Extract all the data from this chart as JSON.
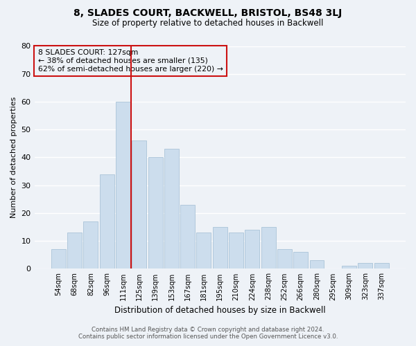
{
  "title": "8, SLADES COURT, BACKWELL, BRISTOL, BS48 3LJ",
  "subtitle": "Size of property relative to detached houses in Backwell",
  "xlabel": "Distribution of detached houses by size in Backwell",
  "ylabel": "Number of detached properties",
  "bar_color": "#ccdded",
  "bar_edgecolor": "#aac4d8",
  "background_color": "#eef2f7",
  "grid_color": "#ffffff",
  "annotation_box_edgecolor": "#cc1111",
  "vline_color": "#cc1111",
  "categories": [
    "54sqm",
    "68sqm",
    "82sqm",
    "96sqm",
    "111sqm",
    "125sqm",
    "139sqm",
    "153sqm",
    "167sqm",
    "181sqm",
    "195sqm",
    "210sqm",
    "224sqm",
    "238sqm",
    "252sqm",
    "266sqm",
    "280sqm",
    "295sqm",
    "309sqm",
    "323sqm",
    "337sqm"
  ],
  "values": [
    7,
    13,
    17,
    34,
    60,
    46,
    40,
    43,
    23,
    13,
    15,
    13,
    14,
    15,
    7,
    6,
    3,
    0,
    1,
    2,
    2
  ],
  "annotation_text": "8 SLADES COURT: 127sqm\n← 38% of detached houses are smaller (135)\n62% of semi-detached houses are larger (220) →",
  "ylim": [
    0,
    80
  ],
  "yticks": [
    0,
    10,
    20,
    30,
    40,
    50,
    60,
    70,
    80
  ],
  "footer1": "Contains HM Land Registry data © Crown copyright and database right 2024.",
  "footer2": "Contains public sector information licensed under the Open Government Licence v3.0."
}
